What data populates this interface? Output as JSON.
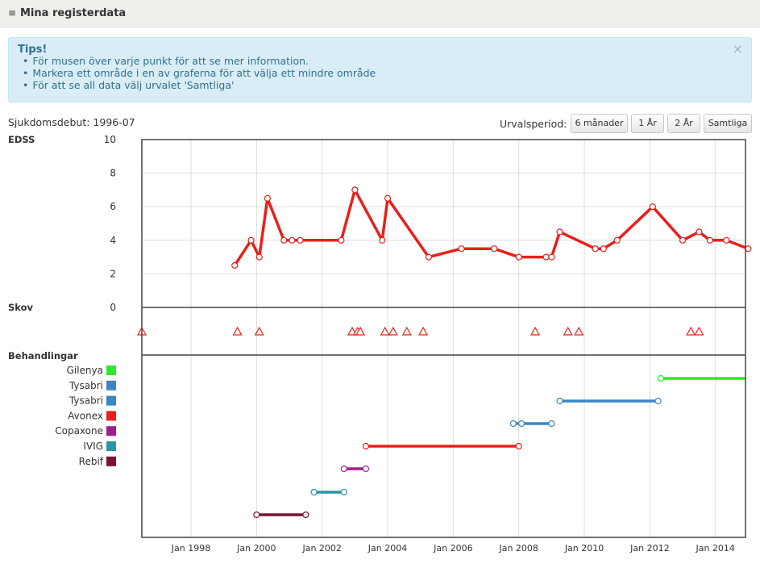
{
  "header": {
    "icon": "list-icon",
    "icon_glyph": "≡",
    "title": "Mina registerdata"
  },
  "tips": {
    "title": "Tips!",
    "close_glyph": "×",
    "items": [
      "För musen över varje punkt för att se mer information.",
      "Markera ett område i en av graferna för att välja ett mindre område",
      "För att se all data välj urvalet 'Samtliga'"
    ]
  },
  "onset": {
    "text": "Sjukdomsdebut: 1996-07"
  },
  "period": {
    "label": "Urvalsperiod:",
    "buttons": [
      "6 månader",
      "1 År",
      "2 År",
      "Samtliga"
    ]
  },
  "panels": {
    "edss_label": "EDSS",
    "skov_label": "Skov",
    "treat_label": "Behandlingar"
  },
  "colors": {
    "edss": "#e8201a",
    "relapse": "#e8201a",
    "grid": "#dddddd",
    "border": "#444444"
  },
  "chart_data": {
    "type": "line",
    "x_axis": {
      "type": "date",
      "range": [
        "1996-07",
        "2014-12"
      ],
      "tick_labels": [
        "Jan 1998",
        "Jan 2000",
        "Jan 2002",
        "Jan 2004",
        "Jan 2006",
        "Jan 2008",
        "Jan 2010",
        "Jan 2012",
        "Jan 2014"
      ],
      "tick_dates": [
        "1998-01",
        "2000-01",
        "2002-01",
        "2004-01",
        "2006-01",
        "2008-01",
        "2010-01",
        "2012-01",
        "2014-01"
      ],
      "grid": true
    },
    "edss": {
      "ylim": [
        0,
        10
      ],
      "ticks": [
        "0",
        "2",
        "4",
        "6",
        "8",
        "10"
      ],
      "points": [
        {
          "x": "1999-05",
          "y": 2.5
        },
        {
          "x": "1999-11",
          "y": 4.0
        },
        {
          "x": "2000-02",
          "y": 3.0
        },
        {
          "x": "2000-05",
          "y": 6.5
        },
        {
          "x": "2000-11",
          "y": 4.0
        },
        {
          "x": "2001-02",
          "y": 4.0
        },
        {
          "x": "2001-05",
          "y": 4.0
        },
        {
          "x": "2002-08",
          "y": 4.0
        },
        {
          "x": "2003-01",
          "y": 7.0
        },
        {
          "x": "2003-11",
          "y": 4.0
        },
        {
          "x": "2004-01",
          "y": 6.5
        },
        {
          "x": "2005-04",
          "y": 3.0
        },
        {
          "x": "2006-04",
          "y": 3.5
        },
        {
          "x": "2007-04",
          "y": 3.5
        },
        {
          "x": "2008-01",
          "y": 3.0
        },
        {
          "x": "2008-11",
          "y": 3.0
        },
        {
          "x": "2009-01",
          "y": 3.0
        },
        {
          "x": "2009-04",
          "y": 4.5
        },
        {
          "x": "2010-05",
          "y": 3.5
        },
        {
          "x": "2010-08",
          "y": 3.5
        },
        {
          "x": "2011-01",
          "y": 4.0
        },
        {
          "x": "2012-02",
          "y": 6.0
        },
        {
          "x": "2013-01",
          "y": 4.0
        },
        {
          "x": "2013-07",
          "y": 4.5
        },
        {
          "x": "2013-11",
          "y": 4.0
        },
        {
          "x": "2014-05",
          "y": 4.0
        },
        {
          "x": "2015-01",
          "y": 3.5
        }
      ]
    },
    "relapses": [
      "1996-07",
      "1999-06",
      "2000-02",
      "2002-12",
      "2003-02",
      "2003-03",
      "2003-12",
      "2004-03",
      "2004-08",
      "2005-02",
      "2008-07",
      "2009-07",
      "2009-11",
      "2013-04",
      "2013-07"
    ],
    "treatments": {
      "legend": [
        {
          "name": "Gilenya",
          "color": "#2ee82e"
        },
        {
          "name": "Tysabri",
          "color": "#3a86c4"
        },
        {
          "name": "Tysabri",
          "color": "#3a86c4"
        },
        {
          "name": "Avonex",
          "color": "#e8201a"
        },
        {
          "name": "Copaxone",
          "color": "#a01f8c"
        },
        {
          "name": "IVIG",
          "color": "#2a96a8"
        },
        {
          "name": "Rebif",
          "color": "#7a1130"
        }
      ],
      "periods": [
        {
          "color": "#2ee82e",
          "start": "2012-05",
          "end": "2015-01",
          "open_end": true
        },
        {
          "color": "#3a86c4",
          "start": "2009-04",
          "end": "2012-04"
        },
        {
          "color": "#3a86c4",
          "start": "2007-11",
          "end": "2009-01",
          "extra_points": [
            "2008-02"
          ]
        },
        {
          "color": "#e8201a",
          "start": "2003-05",
          "end": "2008-01"
        },
        {
          "color": "#a01f8c",
          "start": "2002-09",
          "end": "2003-05"
        },
        {
          "color": "#2a96a8",
          "start": "2001-10",
          "end": "2002-09"
        },
        {
          "color": "#7a1130",
          "start": "2000-01",
          "end": "2001-07"
        }
      ]
    }
  }
}
